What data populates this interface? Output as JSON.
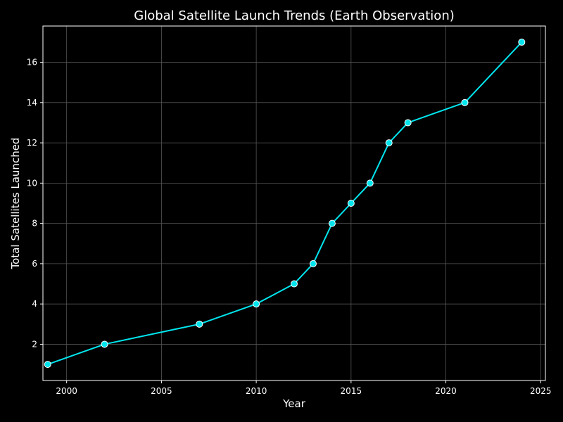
{
  "chart_data": {
    "type": "line",
    "title": "Global Satellite Launch Trends (Earth Observation)",
    "xlabel": "Year",
    "ylabel": "Total Satellites Launched",
    "x": [
      1999,
      2002,
      2007,
      2010,
      2012,
      2013,
      2014,
      2015,
      2016,
      2017,
      2018,
      2021,
      2024
    ],
    "series": [
      {
        "values": [
          1,
          2,
          3,
          4,
          5,
          6,
          8,
          9,
          10,
          12,
          13,
          14,
          17
        ]
      }
    ],
    "xlim": [
      1998.75,
      2025.25
    ],
    "ylim": [
      0.2,
      17.8
    ],
    "xticks": [
      "2000",
      "2005",
      "2010",
      "2015",
      "2020",
      "2025"
    ],
    "yticks": [
      "2",
      "4",
      "6",
      "8",
      "10",
      "12",
      "14",
      "16"
    ],
    "grid": true,
    "colors": {
      "background": "#000000",
      "axes": "#ffffff",
      "grid": "#555555",
      "line": "#00e5ee",
      "marker_fill": "#00e5ee",
      "marker_edge": "#ffffff",
      "text": "#ffffff"
    }
  }
}
